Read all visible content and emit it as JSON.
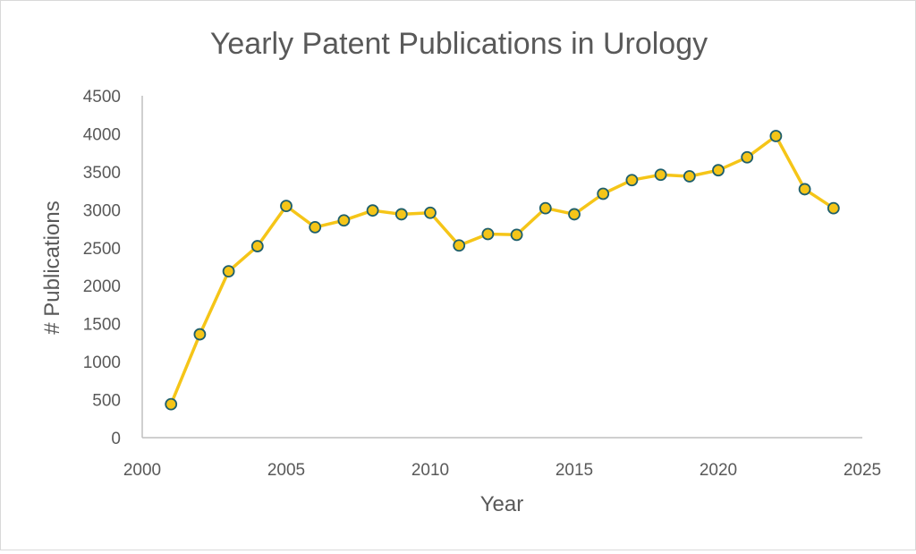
{
  "chart_data": {
    "type": "line",
    "title": "Yearly Patent Publications in Urology",
    "xlabel": "Year",
    "ylabel": "# Publications",
    "xlim": [
      2000,
      2025
    ],
    "ylim": [
      0,
      4500
    ],
    "xticks": [
      2000,
      2005,
      2010,
      2015,
      2020,
      2025
    ],
    "yticks": [
      0,
      500,
      1000,
      1500,
      2000,
      2500,
      3000,
      3500,
      4000,
      4500
    ],
    "grid": false,
    "legend": "none",
    "colors": {
      "line": "#f5c518",
      "marker_fill": "#f5c518",
      "marker_edge": "#1f5f6b",
      "axis": "#bfbfbf",
      "text": "#595959"
    },
    "series": [
      {
        "x": [
          2001,
          2002,
          2003,
          2004,
          2005,
          2006,
          2007,
          2008,
          2009,
          2010,
          2011,
          2012,
          2013,
          2014,
          2015,
          2016,
          2017,
          2018,
          2019,
          2020,
          2021,
          2022,
          2023,
          2024
        ],
        "values": [
          440,
          1360,
          2190,
          2520,
          3050,
          2770,
          2860,
          2990,
          2940,
          2960,
          2530,
          2680,
          2670,
          3020,
          2940,
          3210,
          3390,
          3460,
          3440,
          3520,
          3690,
          3970,
          3270,
          3020
        ]
      }
    ]
  }
}
